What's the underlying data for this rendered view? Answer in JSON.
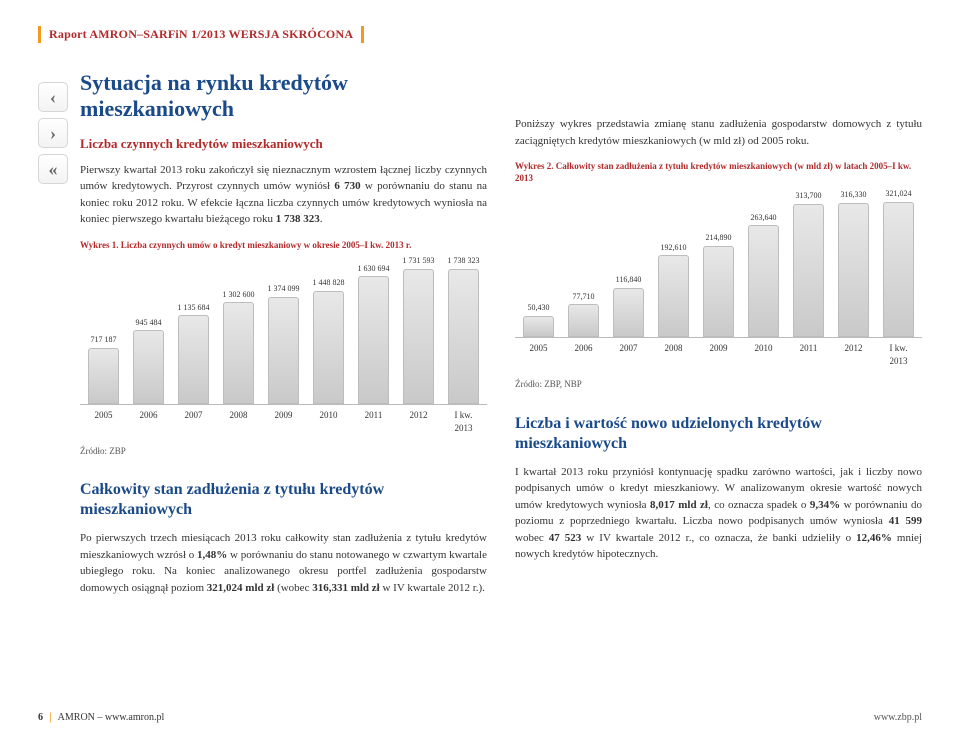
{
  "header": "Raport AMRON–SARFiN 1/2013 WERSJA SKRÓCONA",
  "nav": {
    "prev": "‹",
    "next": "›",
    "back": "«"
  },
  "title": "Sytuacja na rynku kredytów mieszkaniowych",
  "left": {
    "sub1": "Liczba czynnych kredytów mieszkaniowych",
    "p1": "Pierwszy kwartał 2013 roku zakończył się nieznacznym wzrostem łącznej liczby czynnych umów kredytowych. Przyrost czynnych umów wyniósł <b>6 730</b> w porównaniu do stanu na koniec roku 2012 roku. W efekcie łączna liczba czynnych umów kredytowych wyniosła na koniec pierwszego kwartału bieżącego roku <b>1 738 323</b>.",
    "chart1": {
      "caption": "Wykres 1. Liczba czynnych umów o kredyt mieszkaniowy w okresie 2005–I kw. 2013 r.",
      "categories": [
        "2005",
        "2006",
        "2007",
        "2008",
        "2009",
        "2010",
        "2011",
        "2012",
        "I kw.\n2013"
      ],
      "values": [
        717187,
        945484,
        1135684,
        1302600,
        1374099,
        1448828,
        1630694,
        1731593,
        1738323
      ],
      "value_labels": [
        "717 187",
        "945 484",
        "1 135 684",
        "1 302 600",
        "1 374 099",
        "1 448 828",
        "1 630 694",
        "1 731 593",
        "1 738 323"
      ],
      "ymax": 1900000,
      "bar_fill": "linear-gradient(#e8e8e8,#c9c9c9)",
      "bar_border": "#bdbdbd",
      "label_fontsize": 8,
      "axis_fontsize": 9,
      "source": "Źródło: ZBP"
    },
    "sub2": "Całkowity stan zadłużenia z tytułu kredytów mieszkaniowych",
    "p2": "Po pierwszych trzech miesiącach 2013 roku całkowity stan zadłużenia z tytułu kredytów mieszkaniowych wzrósł o <b>1,48%</b> w porównaniu do stanu notowanego w czwartym kwartale ubiegłego roku. Na koniec analizowanego okresu portfel zadłużenia gospodarstw domowych osiągnął poziom <b>321,024 mld zł</b> (wobec <b>316,331 mld zł</b> w IV kwartale 2012 r.)."
  },
  "right": {
    "p1": "Poniższy wykres przedstawia zmianę stanu zadłużenia gospodarstw domowych z tytułu zaciągniętych kredytów mieszkaniowych (w mld zł) od 2005 roku.",
    "chart2": {
      "caption": "Wykres 2. Całkowity stan zadłużenia z tytułu kredytów mieszkaniowych (w mld zł) w latach 2005–I kw. 2013",
      "categories": [
        "2005",
        "2006",
        "2007",
        "2008",
        "2009",
        "2010",
        "2011",
        "2012",
        "I kw.\n2013"
      ],
      "values": [
        50430,
        77710,
        116840,
        192610,
        214890,
        263640,
        313700,
        316330,
        321024
      ],
      "value_labels": [
        "50,430",
        "77,710",
        "116,840",
        "192,610",
        "214,890",
        "263,640",
        "313,700",
        "316,330",
        "321,024"
      ],
      "ymax": 350000,
      "bar_fill": "linear-gradient(#e8e8e8,#c9c9c9)",
      "bar_border": "#bdbdbd",
      "label_fontsize": 8,
      "axis_fontsize": 9,
      "source": "Źródło: ZBP, NBP"
    },
    "sub2": "Liczba i wartość nowo udzielonych kredytów mieszkaniowych",
    "p2": "I kwartał 2013 roku przyniósł kontynuację spadku zarówno wartości, jak i liczby nowo podpisanych umów o kredyt mieszkaniowy. W analizowanym okresie wartość nowych umów kredytowych wyniosła <b>8,017 mld zł</b>, co oznacza spadek o <b>9,34%</b> w porównaniu do poziomu z poprzedniego kwartału. Liczba nowo podpisanych umów wyniosła <b>41 599</b> wobec <b>47 523</b> w IV kwartale 2012 r., co oznacza, że banki udzieliły o <b>12,46%</b> mniej nowych kredytów hipotecznych."
  },
  "footer": {
    "page": "6",
    "left": "AMRON – www.amron.pl",
    "right": "www.zbp.pl"
  },
  "colors": {
    "accent_red": "#b22a2a",
    "accent_blue": "#1a4a8a",
    "accent_orange": "#f39a1e",
    "text": "#333333",
    "bar_top": "#e8e8e8",
    "bar_bottom": "#c9c9c9",
    "bar_border": "#bdbdbd",
    "background": "#ffffff"
  }
}
